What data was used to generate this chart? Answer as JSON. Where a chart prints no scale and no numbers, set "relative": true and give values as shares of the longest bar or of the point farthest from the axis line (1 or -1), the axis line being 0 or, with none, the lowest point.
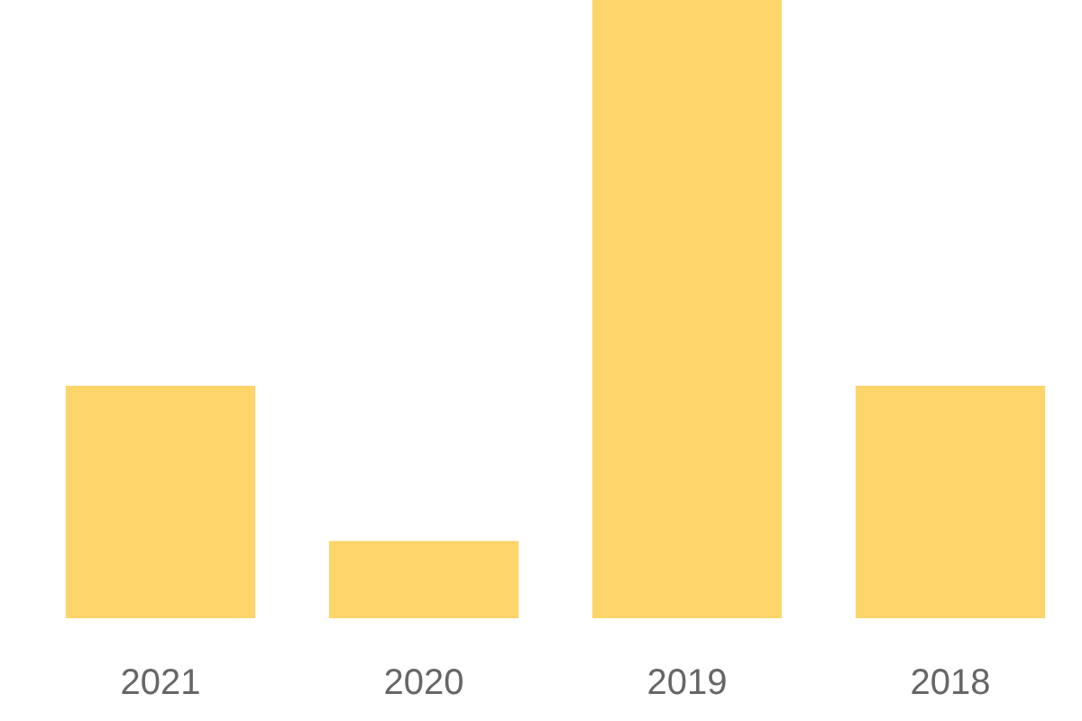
{
  "chart_data": {
    "type": "bar",
    "relative": true,
    "categories": [
      "2021",
      "2020",
      "2019",
      "2018"
    ],
    "series": [
      {
        "color": "#fed56b",
        "values": [
          0.376,
          0.125,
          1,
          0.376
        ]
      }
    ]
  }
}
